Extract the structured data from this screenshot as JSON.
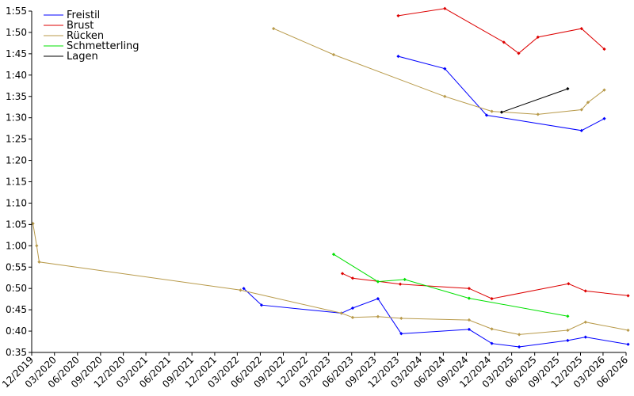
{
  "chart_data": {
    "type": "line",
    "title": "",
    "xlabel": "",
    "ylabel": "",
    "grid": false,
    "legend_position": "top-left",
    "y_unit": "min:sec",
    "ylim": [
      35,
      115
    ],
    "y_ticks": [
      {
        "v": 35,
        "label": "0:35"
      },
      {
        "v": 40,
        "label": "0:40"
      },
      {
        "v": 45,
        "label": "0:45"
      },
      {
        "v": 50,
        "label": "0:50"
      },
      {
        "v": 55,
        "label": "0:55"
      },
      {
        "v": 60,
        "label": "1:00"
      },
      {
        "v": 65,
        "label": "1:05"
      },
      {
        "v": 70,
        "label": "1:10"
      },
      {
        "v": 75,
        "label": "1:15"
      },
      {
        "v": 80,
        "label": "1:20"
      },
      {
        "v": 85,
        "label": "1:25"
      },
      {
        "v": 90,
        "label": "1:30"
      },
      {
        "v": 95,
        "label": "1:35"
      },
      {
        "v": 100,
        "label": "1:40"
      },
      {
        "v": 105,
        "label": "1:45"
      },
      {
        "v": 110,
        "label": "1:50"
      },
      {
        "v": 115,
        "label": "1:55"
      }
    ],
    "xlim": [
      "2019-12",
      "2026-06"
    ],
    "x_ticks": [
      "12/2019",
      "03/2020",
      "06/2020",
      "09/2020",
      "12/2020",
      "03/2021",
      "06/2021",
      "09/2021",
      "12/2021",
      "03/2022",
      "06/2022",
      "09/2022",
      "12/2022",
      "03/2023",
      "06/2023",
      "09/2023",
      "12/2023",
      "03/2024",
      "06/2024",
      "09/2024",
      "12/2024",
      "03/2025",
      "06/2025",
      "09/2025",
      "12/2025",
      "03/2026",
      "06/2026"
    ],
    "series": [
      {
        "name": "Freistil",
        "color": "#0000ff",
        "segments": [
          [
            {
              "x": "2022-03-27",
              "y": 50.0
            },
            {
              "x": "2022-06-06",
              "y": 46.1
            },
            {
              "x": "2023-04-21",
              "y": 44.2
            },
            {
              "x": "2023-06-05",
              "y": 45.4
            },
            {
              "x": "2023-09-14",
              "y": 47.6
            },
            {
              "x": "2023-12-16",
              "y": 39.4
            },
            {
              "x": "2024-09-12",
              "y": 40.4
            },
            {
              "x": "2024-12-12",
              "y": 37.1
            },
            {
              "x": "2025-03-31",
              "y": 36.3
            },
            {
              "x": "2025-10-11",
              "y": 37.8
            },
            {
              "x": "2025-12-21",
              "y": 38.6
            },
            {
              "x": "2026-06-09",
              "y": 36.9
            }
          ],
          [
            {
              "x": "2023-12-04",
              "y": 104.4
            },
            {
              "x": "2024-06-07",
              "y": 101.5
            },
            {
              "x": "2024-11-21",
              "y": 90.6
            },
            {
              "x": "2025-12-05",
              "y": 87.0
            },
            {
              "x": "2026-03-06",
              "y": 89.8
            }
          ]
        ]
      },
      {
        "name": "Brust",
        "color": "#dd0000",
        "segments": [
          [
            {
              "x": "2023-04-25",
              "y": 53.5
            },
            {
              "x": "2023-06-05",
              "y": 52.4
            },
            {
              "x": "2023-12-12",
              "y": 51.0
            },
            {
              "x": "2024-09-12",
              "y": 50.0
            },
            {
              "x": "2024-12-12",
              "y": 47.6
            },
            {
              "x": "2025-10-14",
              "y": 51.1
            },
            {
              "x": "2025-12-21",
              "y": 49.4
            },
            {
              "x": "2026-06-09",
              "y": 48.3
            }
          ],
          [
            {
              "x": "2023-12-04",
              "y": 113.9
            },
            {
              "x": "2024-06-07",
              "y": 115.6
            },
            {
              "x": "2025-01-29",
              "y": 107.7
            },
            {
              "x": "2025-03-29",
              "y": 105.1
            },
            {
              "x": "2025-06-14",
              "y": 108.9
            },
            {
              "x": "2025-12-05",
              "y": 110.9
            },
            {
              "x": "2026-03-06",
              "y": 106.1
            }
          ]
        ]
      },
      {
        "name": "Rücken",
        "color": "#b89a4a",
        "segments": [
          [
            {
              "x": "2019-12-06",
              "y": 65.2
            },
            {
              "x": "2019-12-21",
              "y": 60.0
            },
            {
              "x": "2019-12-31",
              "y": 56.2
            },
            {
              "x": "2022-03-14",
              "y": 49.6
            },
            {
              "x": "2023-04-21",
              "y": 44.2
            },
            {
              "x": "2023-06-05",
              "y": 43.2
            },
            {
              "x": "2023-09-14",
              "y": 43.4
            },
            {
              "x": "2023-12-16",
              "y": 43.0
            },
            {
              "x": "2024-09-12",
              "y": 42.6
            },
            {
              "x": "2024-12-12",
              "y": 40.5
            },
            {
              "x": "2025-03-31",
              "y": 39.2
            },
            {
              "x": "2025-10-11",
              "y": 40.2
            },
            {
              "x": "2025-12-21",
              "y": 42.1
            },
            {
              "x": "2026-06-09",
              "y": 40.2
            }
          ],
          [
            {
              "x": "2022-07-24",
              "y": 110.9
            },
            {
              "x": "2023-03-21",
              "y": 104.8
            },
            {
              "x": "2024-06-07",
              "y": 95.0
            },
            {
              "x": "2024-12-12",
              "y": 91.5
            },
            {
              "x": "2025-06-14",
              "y": 90.8
            },
            {
              "x": "2025-12-05",
              "y": 91.9
            },
            {
              "x": "2025-12-31",
              "y": 93.6
            },
            {
              "x": "2026-03-06",
              "y": 96.5
            }
          ]
        ]
      },
      {
        "name": "Schmetterling",
        "color": "#00e000",
        "segments": [
          [
            {
              "x": "2023-03-21",
              "y": 58.0
            },
            {
              "x": "2023-09-14",
              "y": 51.6
            },
            {
              "x": "2023-12-30",
              "y": 52.1
            },
            {
              "x": "2024-09-12",
              "y": 47.7
            },
            {
              "x": "2025-10-11",
              "y": 43.5
            }
          ]
        ]
      },
      {
        "name": "Lagen",
        "color": "#000000",
        "segments": [
          [
            {
              "x": "2025-01-20",
              "y": 91.3
            },
            {
              "x": "2025-10-11",
              "y": 96.8
            }
          ]
        ]
      }
    ]
  }
}
